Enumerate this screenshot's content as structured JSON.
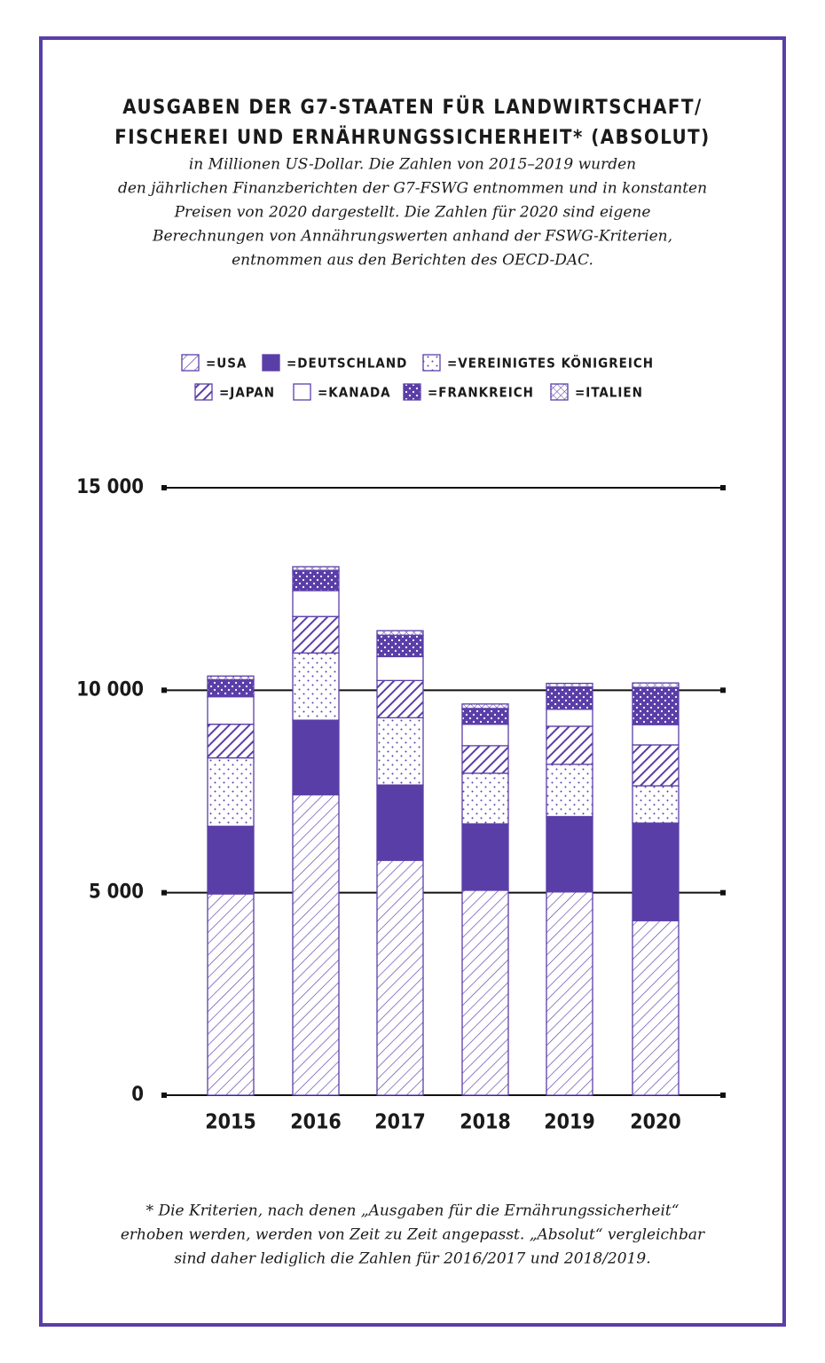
{
  "chart_data": {
    "type": "stacked-bar",
    "title": [
      "AUSGABEN DER G7-STAATEN FÜR LANDWIRTSCHAFT/",
      "FISCHEREI UND ERNÄHRUNGSSICHERHEIT* (ABSOLUT)"
    ],
    "subtitle": [
      "in Millionen US-Dollar. Die Zahlen von 2015–2019 wurden",
      "den jährlichen Finanzberichten der G7-FSWG entnommen und in konstanten",
      "Preisen von 2020 dargestellt. Die Zahlen für 2020 sind eigene",
      "Berechnungen von Annährungswerten anhand der FSWG-Kriterien,",
      "entnommen aus den Berichten des OECD-DAC."
    ],
    "footnote": [
      "* Die Kriterien, nach denen „Ausgaben für die Ernährungssicherheit“",
      "erhoben werden, werden von Zeit zu Zeit angepasst. „Absolut“ vergleichbar",
      "sind daher lediglich die Zahlen für 2016/2017 und 2018/2019."
    ],
    "categories": [
      "2015",
      "2016",
      "2017",
      "2018",
      "2019",
      "2020"
    ],
    "ylim": [
      0,
      15000
    ],
    "yticks": [
      0,
      {
        "value": 5000,
        "label": "5 000"
      },
      {
        "value": 10000,
        "label": "10 000"
      },
      {
        "value": 15000,
        "label": "15 000"
      }
    ],
    "grid": true,
    "color": "#5a3ea8",
    "series": [
      {
        "name": "=USA",
        "pattern": "hatch",
        "values": [
          4970,
          7420,
          5800,
          5060,
          5020,
          4310
        ]
      },
      {
        "name": "=DEUTSCHLAND",
        "pattern": "solid",
        "values": [
          1670,
          1840,
          1860,
          1640,
          1860,
          2410
        ]
      },
      {
        "name": "=VEREINIGTES KÖNIGREICH",
        "pattern": "dots",
        "values": [
          1690,
          1660,
          1660,
          1250,
          1290,
          920
        ]
      },
      {
        "name": "=JAPAN",
        "pattern": "hatch-bold",
        "values": [
          830,
          900,
          920,
          680,
          940,
          1010
        ]
      },
      {
        "name": "=KANADA",
        "pattern": "none",
        "values": [
          680,
          640,
          590,
          530,
          420,
          500
        ]
      },
      {
        "name": "=FRANKREICH",
        "pattern": "dots-dense",
        "values": [
          420,
          500,
          530,
          390,
          550,
          920
        ]
      },
      {
        "name": "=ITALIEN",
        "pattern": "crosshatch",
        "values": [
          90,
          90,
          110,
          110,
          90,
          110
        ]
      }
    ]
  }
}
